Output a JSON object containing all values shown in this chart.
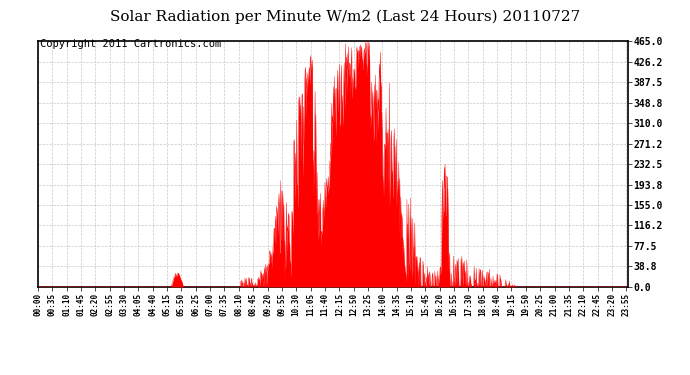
{
  "title": "Solar Radiation per Minute W/m2 (Last 24 Hours) 20110727",
  "copyright": "Copyright 2011 Cartronics.com",
  "y_ticks": [
    0.0,
    38.8,
    77.5,
    116.2,
    155.0,
    193.8,
    232.5,
    271.2,
    310.0,
    348.8,
    387.5,
    426.2,
    465.0
  ],
  "y_max": 465.0,
  "fill_color": "#ff0000",
  "line_color": "#ff0000",
  "bg_color": "#ffffff",
  "grid_color": "#bbbbbb",
  "dashed_line_color": "#ff0000",
  "title_fontsize": 11,
  "copyright_fontsize": 7.5
}
